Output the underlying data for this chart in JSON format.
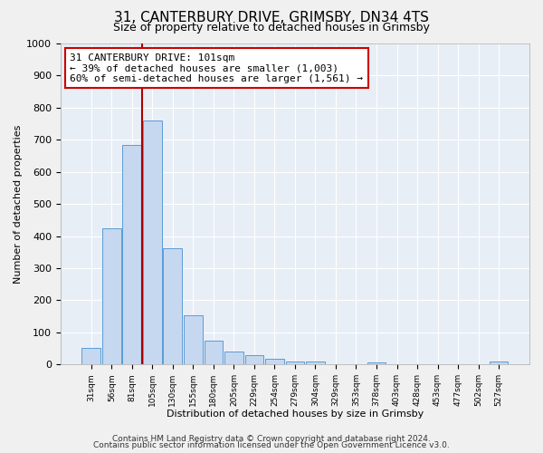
{
  "title": "31, CANTERBURY DRIVE, GRIMSBY, DN34 4TS",
  "subtitle": "Size of property relative to detached houses in Grimsby",
  "xlabel": "Distribution of detached houses by size in Grimsby",
  "ylabel": "Number of detached properties",
  "bar_labels": [
    "31sqm",
    "56sqm",
    "81sqm",
    "105sqm",
    "130sqm",
    "155sqm",
    "180sqm",
    "205sqm",
    "229sqm",
    "254sqm",
    "279sqm",
    "304sqm",
    "329sqm",
    "353sqm",
    "378sqm",
    "403sqm",
    "428sqm",
    "453sqm",
    "477sqm",
    "502sqm",
    "527sqm"
  ],
  "bar_values": [
    52,
    425,
    685,
    760,
    362,
    152,
    75,
    40,
    30,
    18,
    10,
    8,
    0,
    0,
    5,
    0,
    0,
    0,
    0,
    0,
    8
  ],
  "bar_color": "#c5d8f0",
  "bar_edge_color": "#5b9bd5",
  "vline_color": "#aa0000",
  "annotation_line1": "31 CANTERBURY DRIVE: 101sqm",
  "annotation_line2": "← 39% of detached houses are smaller (1,003)",
  "annotation_line3": "60% of semi-detached houses are larger (1,561) →",
  "annotation_box_color": "#ffffff",
  "annotation_box_edge_color": "#cc0000",
  "ylim": [
    0,
    1000
  ],
  "yticks": [
    0,
    100,
    200,
    300,
    400,
    500,
    600,
    700,
    800,
    900,
    1000
  ],
  "bg_color": "#e8eef6",
  "grid_color": "#ffffff",
  "fig_bg_color": "#f0f0f0",
  "footer_line1": "Contains HM Land Registry data © Crown copyright and database right 2024.",
  "footer_line2": "Contains public sector information licensed under the Open Government Licence v3.0.",
  "title_fontsize": 11,
  "subtitle_fontsize": 9,
  "annotation_fontsize": 8,
  "footer_fontsize": 6.5,
  "xlabel_fontsize": 8,
  "ylabel_fontsize": 8
}
